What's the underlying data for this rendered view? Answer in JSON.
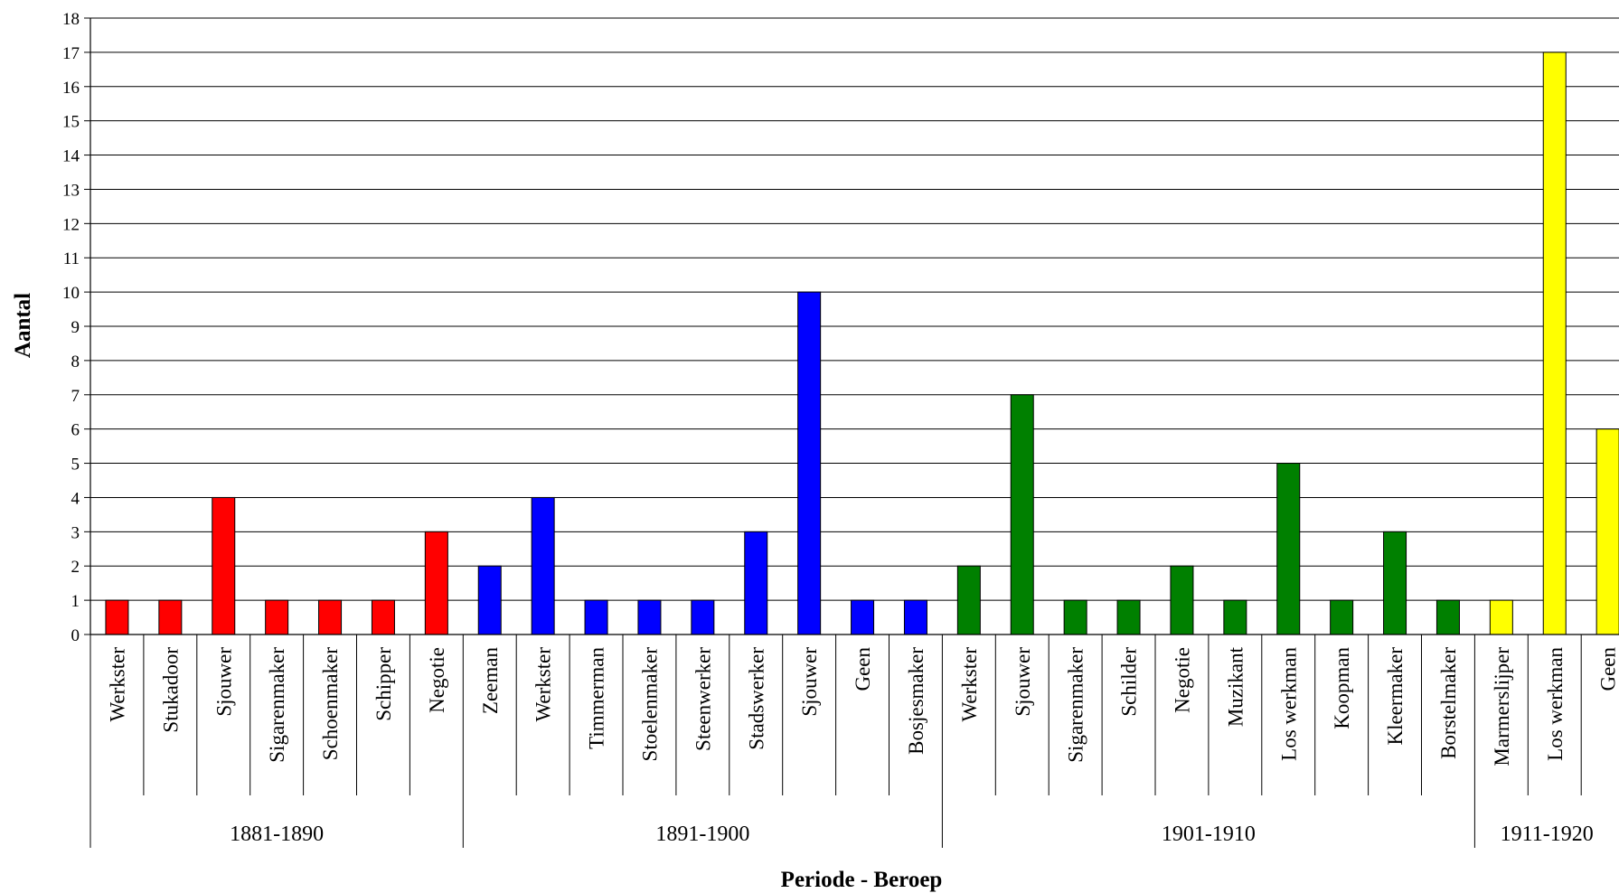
{
  "chart_data": {
    "type": "bar",
    "title": "",
    "xlabel": "Periode - Beroep",
    "ylabel": "Aantal",
    "ylim": [
      0,
      18
    ],
    "yticks": [
      0,
      1,
      2,
      3,
      4,
      5,
      6,
      7,
      8,
      9,
      10,
      11,
      12,
      13,
      14,
      15,
      16,
      17,
      18
    ],
    "grid": true,
    "legend": "none",
    "groups": [
      {
        "name": "1881-1890",
        "color": "#ff0000",
        "categories": [
          "Werkster",
          "Stukadoor",
          "Sjouwer",
          "Sigarenmaker",
          "Schoenmaker",
          "Schipper",
          "Negotie"
        ],
        "values": [
          1,
          1,
          4,
          1,
          1,
          1,
          3
        ]
      },
      {
        "name": "1891-1900",
        "color": "#0000ff",
        "categories": [
          "Zeeman",
          "Werkster",
          "Timmerman",
          "Stoelenmaker",
          "Steenwerker",
          "Stadswerker",
          "Sjouwer",
          "Geen",
          "Bosjesmaker"
        ],
        "values": [
          2,
          4,
          1,
          1,
          1,
          3,
          10,
          1,
          1
        ]
      },
      {
        "name": "1901-1910",
        "color": "#008000",
        "categories": [
          "Werkster",
          "Sjouwer",
          "Sigarenmaker",
          "Schilder",
          "Negotie",
          "Muzikant",
          "Los werkman",
          "Koopman",
          "Kleermaker",
          "Borstelmaker"
        ],
        "values": [
          2,
          7,
          1,
          1,
          2,
          1,
          5,
          1,
          3,
          1
        ]
      },
      {
        "name": "1911-1920",
        "color": "#ffff00",
        "categories": [
          "Marmerslijper",
          "Los werkman",
          "Geen"
        ],
        "values": [
          1,
          17,
          6
        ]
      }
    ]
  }
}
